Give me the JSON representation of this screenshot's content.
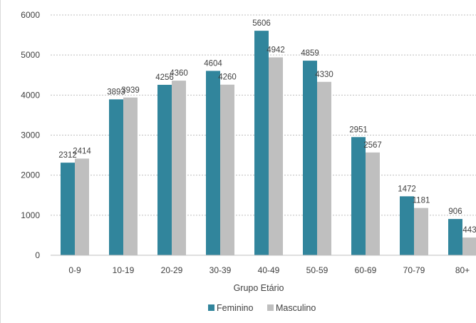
{
  "chart_data": {
    "type": "bar",
    "title": "",
    "xlabel": "Grupo Etário",
    "ylabel": "",
    "categories": [
      "0-9",
      "10-19",
      "20-29",
      "30-39",
      "40-49",
      "50-59",
      "60-69",
      "70-79",
      "80+"
    ],
    "series": [
      {
        "name": "Feminino",
        "color": "#31859c",
        "values": [
          2312,
          3893,
          4256,
          4604,
          5606,
          4859,
          2951,
          1472,
          906
        ]
      },
      {
        "name": "Masculino",
        "color": "#bfbfbf",
        "values": [
          2414,
          3939,
          4360,
          4260,
          4942,
          4330,
          2567,
          1181,
          443
        ]
      }
    ],
    "ylim": [
      0,
      6000
    ],
    "yticks": [
      0,
      1000,
      2000,
      3000,
      4000,
      5000,
      6000
    ],
    "grid": true,
    "legend_position": "bottom"
  }
}
